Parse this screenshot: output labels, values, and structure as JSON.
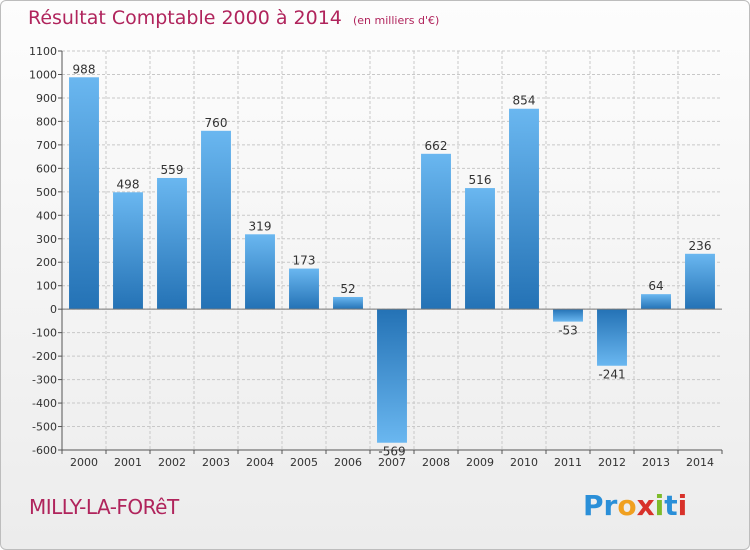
{
  "header": {
    "title": "Résultat Comptable 2000 à 2014",
    "unit": "(en milliers d'€)"
  },
  "footer": {
    "commune": "MILLY-LA-FORêT",
    "logo": {
      "letters": [
        "P",
        "r",
        "o",
        "x",
        "i",
        "t",
        "i"
      ],
      "colors": [
        "#2a8fd8",
        "#2a8fd8",
        "#f0a020",
        "#d8312a",
        "#7dbb2a",
        "#2a8fd8",
        "#d8312a"
      ]
    }
  },
  "colors": {
    "bar_light": "#6ab7f0",
    "bar_dark": "#2472b5",
    "grid": "#c8c8c8",
    "title": "#b0245c"
  },
  "chart_data": {
    "type": "bar",
    "title": "Résultat Comptable 2000 à 2014",
    "categories": [
      "2000",
      "2001",
      "2002",
      "2003",
      "2004",
      "2005",
      "2006",
      "2007",
      "2008",
      "2009",
      "2010",
      "2011",
      "2012",
      "2013",
      "2014"
    ],
    "values": [
      988,
      498,
      559,
      760,
      319,
      173,
      52,
      -569,
      662,
      516,
      854,
      -53,
      -241,
      64,
      236
    ],
    "value_labels": [
      "988",
      "498",
      "559",
      "760",
      "319",
      "173",
      "52",
      "-569",
      "662",
      "516",
      "854",
      "-53",
      "-241",
      "64",
      "236"
    ],
    "ylim": [
      -600,
      1100
    ],
    "yticks": [
      1100,
      1000,
      900,
      800,
      700,
      600,
      500,
      400,
      300,
      200,
      100,
      0,
      -100,
      -200,
      -300,
      -400,
      -500,
      -600
    ],
    "ytick_labels": [
      "1100",
      "1000",
      "900",
      "800",
      "700",
      "600",
      "500",
      "400",
      "300",
      "200",
      "100",
      "0",
      "-100",
      "-200",
      "-300",
      "-400",
      "-500",
      "-600"
    ],
    "grid": true,
    "xlabel": "",
    "ylabel": ""
  }
}
